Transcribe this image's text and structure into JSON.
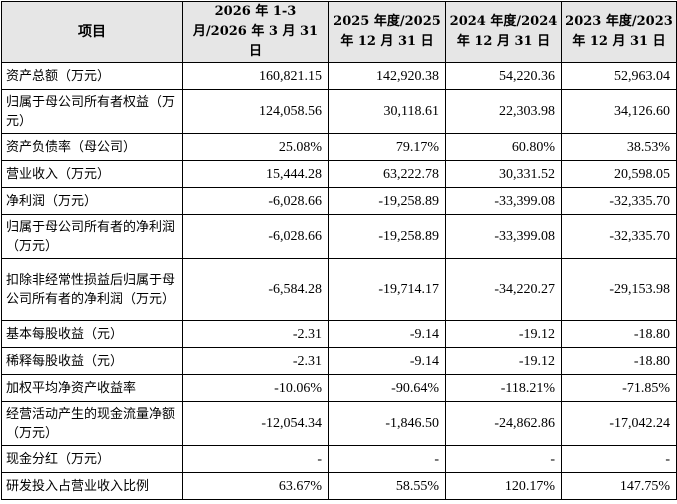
{
  "table": {
    "headers": [
      "项目",
      "2026 年 1-3 月/2026 年 3 月 31 日",
      "2025 年度/2025 年 12 月 31 日",
      "2024 年度/2024 年 12 月 31 日",
      "2023 年度/2023 年 12 月 31 日"
    ],
    "rows": [
      {
        "label": "资产总额（万元）",
        "values": [
          "160,821.15",
          "142,920.38",
          "54,220.36",
          "52,963.04"
        ]
      },
      {
        "label": "归属于母公司所有者权益（万元）",
        "values": [
          "124,058.56",
          "30,118.61",
          "22,303.98",
          "34,126.60"
        ]
      },
      {
        "label": "资产负债率（母公司）",
        "values": [
          "25.08%",
          "79.17%",
          "60.80%",
          "38.53%"
        ]
      },
      {
        "label": "营业收入（万元）",
        "values": [
          "15,444.28",
          "63,222.78",
          "30,331.52",
          "20,598.05"
        ]
      },
      {
        "label": "净利润（万元）",
        "values": [
          "-6,028.66",
          "-19,258.89",
          "-33,399.08",
          "-32,335.70"
        ]
      },
      {
        "label": "归属于母公司所有者的净利润（万元）",
        "values": [
          "-6,028.66",
          "-19,258.89",
          "-33,399.08",
          "-32,335.70"
        ]
      },
      {
        "label": "扣除非经常性损益后归属于母公司所有者的净利润（万元）",
        "values": [
          "-6,584.28",
          "-19,714.17",
          "-34,220.27",
          "-29,153.98"
        ]
      },
      {
        "label": "基本每股收益（元）",
        "values": [
          "-2.31",
          "-9.14",
          "-19.12",
          "-18.80"
        ]
      },
      {
        "label": "稀释每股收益（元）",
        "values": [
          "-2.31",
          "-9.14",
          "-19.12",
          "-18.80"
        ]
      },
      {
        "label": "加权平均净资产收益率",
        "values": [
          "-10.06%",
          "-90.64%",
          "-118.21%",
          "-71.85%"
        ]
      },
      {
        "label": "经营活动产生的现金流量净额（万元）",
        "values": [
          "-12,054.34",
          "-1,846.50",
          "-24,862.86",
          "-17,042.24"
        ]
      },
      {
        "label": "现金分红（万元）",
        "values": [
          "-",
          "-",
          "-",
          "-"
        ]
      },
      {
        "label": "研发投入占营业收入比例",
        "values": [
          "63.67%",
          "58.55%",
          "120.17%",
          "147.75%"
        ]
      }
    ]
  }
}
